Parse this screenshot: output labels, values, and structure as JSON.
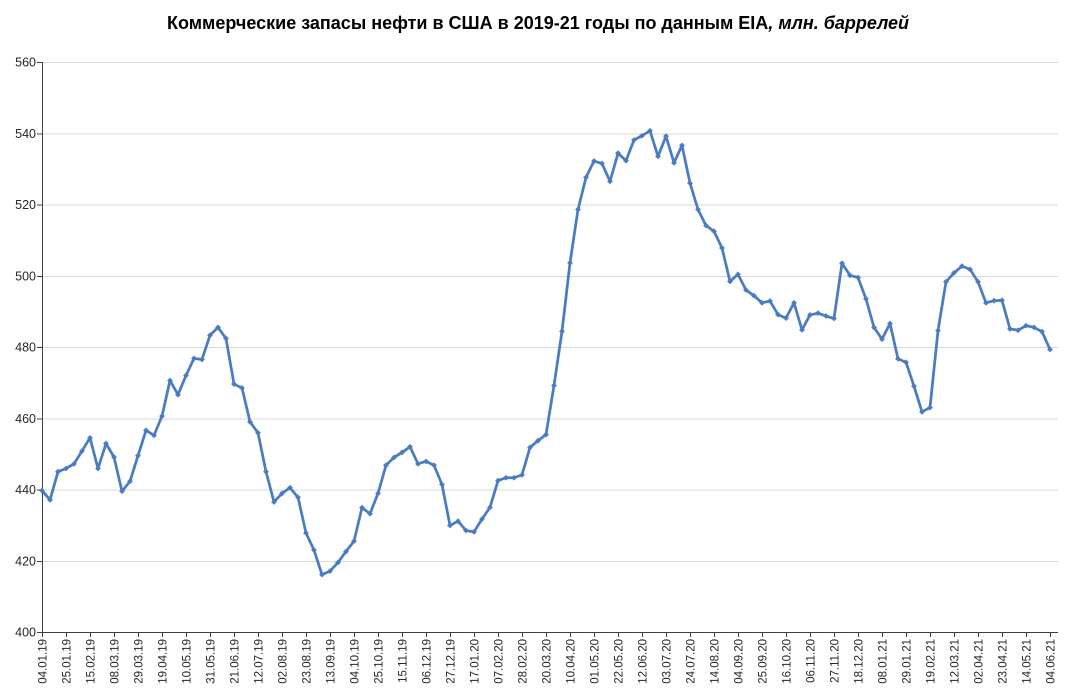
{
  "title": {
    "text_main": "Коммерческие запасы нефти в США в 2019-21 годы по данным EIA",
    "text_suffix": ", млн. баррелей"
  },
  "chart_data": {
    "type": "line",
    "title": "Коммерческие запасы нефти в США в 2019-21 годы по данным EIA, млн. баррелей",
    "units": "млн. баррелей",
    "grid": "horizontal",
    "legend": "none",
    "marker": "diamond",
    "ylim": [
      400,
      560
    ],
    "y_ticks": [
      400,
      420,
      440,
      460,
      480,
      500,
      520,
      540,
      560
    ],
    "points_per_tick": 3,
    "x_tick_labels": [
      "04.01.19",
      "25.01.19",
      "15.02.19",
      "08.03.19",
      "29.03.19",
      "19.04.19",
      "10.05.19",
      "31.05.19",
      "21.06.19",
      "12.07.19",
      "02.08.19",
      "23.08.19",
      "13.09.19",
      "04.10.19",
      "25.10.19",
      "15.11.19",
      "06.12.19",
      "27.12.19",
      "17.01.20",
      "07.02.20",
      "28.02.20",
      "20.03.20",
      "10.04.20",
      "01.05.20",
      "22.05.20",
      "12.06.20",
      "03.07.20",
      "24.07.20",
      "14.08.20",
      "04.09.20",
      "25.09.20",
      "16.10.20",
      "06.11.20",
      "27.11.20",
      "18.12.20",
      "08.01.21",
      "29.01.21",
      "19.02.21",
      "12.03.21",
      "02.04.21",
      "23.04.21",
      "14.05.21",
      "04.06.21"
    ],
    "values": [
      439.7,
      437.1,
      445.0,
      445.9,
      447.2,
      450.8,
      454.5,
      445.9,
      452.9,
      449.1,
      439.5,
      442.3,
      449.5,
      456.6,
      455.2,
      460.6,
      470.6,
      466.6,
      472.0,
      476.8,
      476.5,
      483.3,
      485.5,
      482.4,
      469.6,
      468.5,
      459.0,
      455.9,
      445.0,
      436.5,
      438.9,
      440.5,
      437.8,
      427.8,
      423.0,
      416.1,
      417.1,
      419.5,
      422.6,
      425.5,
      434.9,
      433.2,
      438.9,
      446.8,
      449.0,
      450.4,
      452.0,
      447.2,
      447.9,
      446.8,
      441.4,
      429.9,
      431.1,
      428.5,
      428.1,
      431.7,
      435.0,
      442.5,
      443.3,
      443.3,
      444.1,
      451.8,
      453.7,
      455.4,
      469.2,
      484.4,
      503.6,
      518.6,
      527.6,
      532.2,
      531.5,
      526.5,
      534.4,
      532.3,
      538.1,
      539.3,
      540.7,
      533.5,
      539.2,
      531.7,
      536.6,
      526.0,
      518.6,
      514.1,
      512.5,
      507.8,
      498.4,
      500.4,
      496.0,
      494.4,
      492.4,
      492.9,
      489.1,
      488.1,
      492.4,
      484.8,
      489.0,
      489.5,
      488.7,
      488.0,
      503.5,
      500.1,
      499.5,
      493.5,
      485.5,
      482.2,
      486.6,
      476.7,
      475.7,
      469.0,
      461.8,
      463.0,
      484.6,
      498.3,
      500.8,
      502.7,
      501.8,
      498.3,
      492.4,
      493.0,
      493.1,
      485.1,
      484.7,
      486.0,
      485.5,
      484.3,
      479.3
    ],
    "colors": {
      "series": "#4A7CC2",
      "grid": "#D9D9D9",
      "axis": "#404040",
      "tick_label": "#262626",
      "title": "#000000"
    }
  }
}
